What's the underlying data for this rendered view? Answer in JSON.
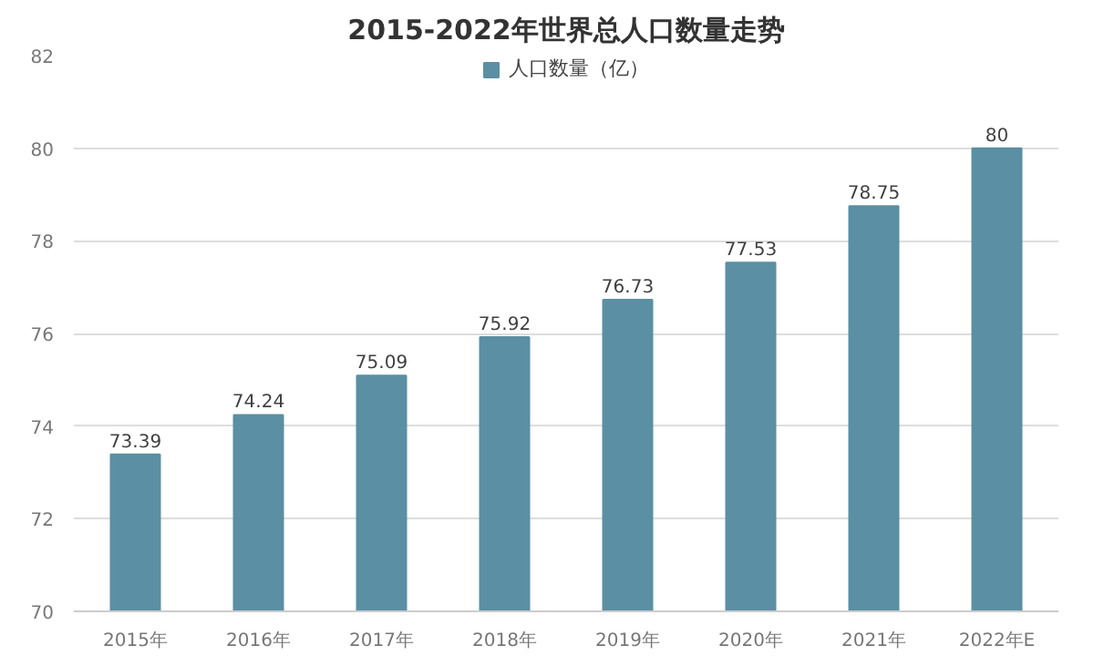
{
  "chart_data": {
    "type": "bar",
    "title": "2015-2022年世界总人口数量走势",
    "categories": [
      "2015年",
      "2016年",
      "2017年",
      "2018年",
      "2019年",
      "2020年",
      "2021年",
      "2022年E"
    ],
    "series": [
      {
        "name": "人口数量（亿）",
        "color": "#5b8fa3",
        "values": [
          73.39,
          74.24,
          75.09,
          75.92,
          76.73,
          77.53,
          78.75,
          80
        ]
      }
    ],
    "ylim": [
      70,
      82
    ],
    "yticks": [
      70,
      72,
      74,
      76,
      78,
      80,
      82
    ],
    "grid": "y",
    "legend": "top",
    "data_labels": true
  }
}
